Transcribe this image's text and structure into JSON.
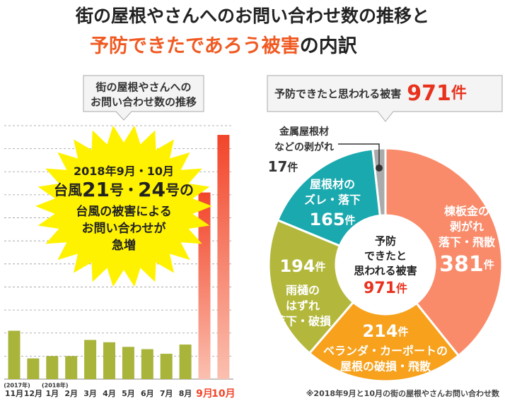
{
  "header": {
    "line1": "街の屋根やさんへのお問い合わせ数の推移と",
    "line2_highlight": "予防できたであろう被害",
    "line2_rest": "の内訳"
  },
  "chart_data": [
    {
      "type": "bar",
      "title_lines": [
        "街の屋根やさんへの",
        "お問い合わせ数の推移"
      ],
      "categories": [
        "11月",
        "12月",
        "1月",
        "2月",
        "3月",
        "4月",
        "5月",
        "6月",
        "7月",
        "8月",
        "9月",
        "10月"
      ],
      "category_notes": [
        "(2017年)",
        null,
        "(2018年)",
        null,
        null,
        null,
        null,
        null,
        null,
        null,
        null,
        null
      ],
      "values": [
        2.1,
        0.9,
        1.0,
        1.0,
        1.7,
        1.6,
        1.4,
        1.3,
        1.1,
        1.5,
        8.1,
        10.6
      ],
      "colors": [
        "#a9b43a",
        "#a9b43a",
        "#a9b43a",
        "#a9b43a",
        "#a9b43a",
        "#a9b43a",
        "#a9b43a",
        "#a9b43a",
        "#a9b43a",
        "#a9b43a",
        "#f2452a",
        "#f2452a"
      ],
      "ylim": [
        0,
        11
      ],
      "yticks": [
        1,
        2,
        3,
        4,
        5,
        6,
        7,
        8,
        9,
        10,
        11
      ],
      "grid": true,
      "annotation": [
        [
          "2018年9月・10月"
        ],
        [
          "台風",
          "21",
          "号・",
          "24",
          "号の"
        ],
        [
          "台風の被害による"
        ],
        [
          "お問い合わせが"
        ],
        [
          "急増"
        ]
      ]
    },
    {
      "type": "pie",
      "header": "予防できたと思われる被害",
      "total": 971,
      "total_label": "971件",
      "center_lines": [
        "予防",
        "できたと",
        "思われる被害"
      ],
      "labels": [
        [
          "棟板金の",
          "剥がれ",
          "落下・飛散"
        ],
        [
          "ベランダ・カーポートの",
          "屋根の破損・飛散"
        ],
        [
          "雨樋の",
          "はずれ",
          "落下・破損"
        ],
        [
          "屋根材の",
          "ズレ・落下"
        ],
        [
          "金属屋根材",
          "などの剥がれ"
        ]
      ],
      "values": [
        381,
        214,
        194,
        165,
        17
      ],
      "value_labels": [
        "381件",
        "214件",
        "194件",
        "165件",
        "17件"
      ],
      "colors": [
        "#f98b6b",
        "#f7a11c",
        "#b3b83c",
        "#1aa9ae",
        "#aaaaaa"
      ],
      "note": "※2018年9月と10月の街の屋根やさんお問い合わせ数"
    }
  ]
}
